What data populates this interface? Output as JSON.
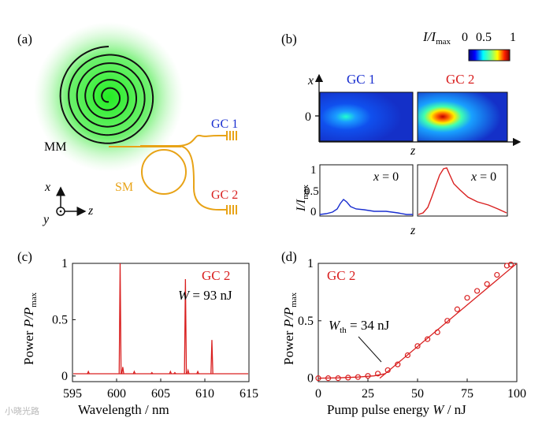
{
  "colors": {
    "red": "#d92020",
    "blue": "#1a2fd0",
    "gold": "#e8a317",
    "green": "#22dd22",
    "black": "#111111",
    "grid": "#ffffff"
  },
  "panel_a": {
    "label": "(a)",
    "mm_label": "MM",
    "sm_label": "SM",
    "gc1_label": "GC 1",
    "gc2_label": "GC 2",
    "axis_x": "x",
    "axis_y": "y",
    "axis_z": "z"
  },
  "panel_b": {
    "label": "(b)",
    "colorbar": {
      "title_i": "I",
      "title_rest": "/I",
      "title_sub": "max",
      "ticks": [
        "0",
        "0.5",
        "1"
      ]
    },
    "axis_x": "x",
    "axis_x_tick": "0",
    "axis_z": "z",
    "gc1_label": "GC 1",
    "gc2_label": "GC 2",
    "profile_ylabel_i": "I",
    "profile_ylabel_rest": "/I",
    "profile_ylabel_sub": "max",
    "profile_yticks": [
      "1",
      "0.5",
      "0"
    ],
    "gc1_annot": "x = 0",
    "gc2_annot": "x = 0",
    "profile_xlabel": "z"
  },
  "chart_data": [
    {
      "panel": "c",
      "type": "line",
      "label": "(c)",
      "legend": "GC 2",
      "annotation": "W = 93 nJ",
      "annotation_w": "W",
      "annotation_rest": " = 93 nJ",
      "xlabel": "Wavelength / nm",
      "ylabel_word": "Power ",
      "ylabel_sym": "P/P",
      "ylabel_sub": "max",
      "xlim": [
        595,
        615
      ],
      "ylim": [
        -0.05,
        1.0
      ],
      "xticks": [
        "595",
        "600",
        "605",
        "610",
        "615"
      ],
      "yticks": [
        "0",
        "0.5",
        "1"
      ],
      "baseline": 0.02,
      "peaks": [
        {
          "x": 596.8,
          "y": 0.04
        },
        {
          "x": 600.4,
          "y": 1.0
        },
        {
          "x": 600.7,
          "y": 0.08
        },
        {
          "x": 602.0,
          "y": 0.04
        },
        {
          "x": 604.0,
          "y": 0.03
        },
        {
          "x": 606.1,
          "y": 0.04
        },
        {
          "x": 606.6,
          "y": 0.03
        },
        {
          "x": 607.8,
          "y": 0.86
        },
        {
          "x": 608.1,
          "y": 0.05
        },
        {
          "x": 609.2,
          "y": 0.04
        },
        {
          "x": 610.8,
          "y": 0.32
        }
      ]
    },
    {
      "panel": "d",
      "type": "scatter",
      "label": "(d)",
      "legend": "GC 2",
      "annotation_w": "W",
      "annotation_sub": "th",
      "annotation_rest": " = 34 nJ",
      "xlabel_pre": "Pump pulse energy ",
      "xlabel_w": "W",
      "xlabel_post": " / nJ",
      "ylabel_word": "Power ",
      "ylabel_sym": "P/P",
      "ylabel_sub": "max",
      "xlim": [
        0,
        100
      ],
      "ylim": [
        -0.03,
        1.0
      ],
      "xticks": [
        "0",
        "25",
        "50",
        "75",
        "100"
      ],
      "yticks": [
        "0",
        "0.5",
        "1"
      ],
      "points": [
        {
          "x": 0,
          "y": 0.0
        },
        {
          "x": 5,
          "y": 0.0
        },
        {
          "x": 10,
          "y": 0.0
        },
        {
          "x": 15,
          "y": 0.005
        },
        {
          "x": 20,
          "y": 0.01
        },
        {
          "x": 25,
          "y": 0.02
        },
        {
          "x": 30,
          "y": 0.04
        },
        {
          "x": 35,
          "y": 0.07
        },
        {
          "x": 40,
          "y": 0.12
        },
        {
          "x": 45,
          "y": 0.2
        },
        {
          "x": 50,
          "y": 0.28
        },
        {
          "x": 55,
          "y": 0.34
        },
        {
          "x": 60,
          "y": 0.4
        },
        {
          "x": 65,
          "y": 0.5
        },
        {
          "x": 70,
          "y": 0.6
        },
        {
          "x": 75,
          "y": 0.7
        },
        {
          "x": 80,
          "y": 0.76
        },
        {
          "x": 85,
          "y": 0.82
        },
        {
          "x": 90,
          "y": 0.9
        },
        {
          "x": 95,
          "y": 0.98
        },
        {
          "x": 97,
          "y": 0.99
        }
      ],
      "fit_below": [
        [
          0,
          0.0
        ],
        [
          10,
          0.003
        ],
        [
          20,
          0.01
        ],
        [
          28,
          0.02
        ],
        [
          34,
          0.04
        ]
      ],
      "fit_linear": [
        [
          31,
          0.0
        ],
        [
          100,
          1.0
        ]
      ]
    }
  ],
  "watermark": "小晓光路"
}
